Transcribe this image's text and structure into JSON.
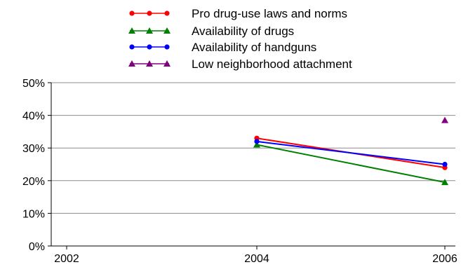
{
  "chart_data": {
    "type": "line",
    "title": "",
    "xlabel": "",
    "ylabel": "",
    "x": [
      "2002",
      "2004",
      "2006"
    ],
    "ylim": [
      0,
      50
    ],
    "yticks": [
      "0%",
      "10%",
      "20%",
      "30%",
      "40%",
      "50%"
    ],
    "grid": true,
    "legend_position": "top",
    "series": [
      {
        "name": "Pro drug-use laws and norms",
        "color": "#ff0000",
        "marker": "circle",
        "values": [
          null,
          33,
          24
        ]
      },
      {
        "name": "Availability of drugs",
        "color": "#008000",
        "marker": "triangle",
        "values": [
          null,
          31,
          19.5
        ]
      },
      {
        "name": "Availability of handguns",
        "color": "#0000ff",
        "marker": "circle",
        "values": [
          null,
          32,
          25
        ]
      },
      {
        "name": "Low neighborhood attachment",
        "color": "#800080",
        "marker": "triangle",
        "values": [
          null,
          null,
          38.5
        ]
      }
    ]
  }
}
